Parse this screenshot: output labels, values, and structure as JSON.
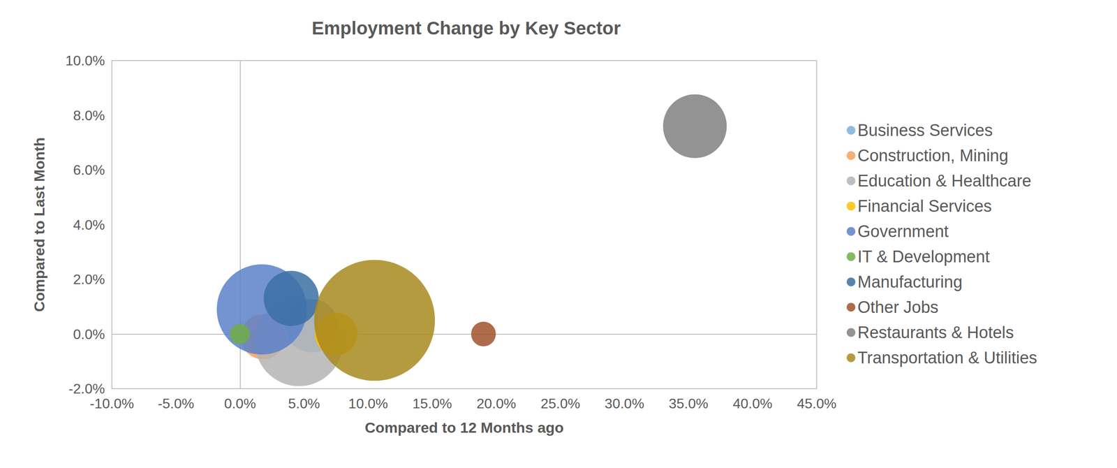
{
  "chart_data": {
    "type": "scatter",
    "title": "Employment Change by Key Sector",
    "x_label": "Compared to 12 Months ago",
    "y_label": "Compared to Last Month",
    "xlim": [
      -10,
      45
    ],
    "xticks": [
      {
        "value": -10,
        "label": "-10.0%"
      },
      {
        "value": -5,
        "label": "-5.0%"
      },
      {
        "value": 0,
        "label": "0.0%"
      },
      {
        "value": 5,
        "label": "5.0%"
      },
      {
        "value": 10,
        "label": "10.0%"
      },
      {
        "value": 15,
        "label": "15.0%"
      },
      {
        "value": 20,
        "label": "20.0%"
      },
      {
        "value": 25,
        "label": "25.0%"
      },
      {
        "value": 30,
        "label": "30.0%"
      },
      {
        "value": 35,
        "label": "35.0%"
      },
      {
        "value": 40,
        "label": "40.0%"
      },
      {
        "value": 45,
        "label": "45.0%"
      }
    ],
    "ylim": [
      -2,
      10
    ],
    "yticks": [
      {
        "value": -2,
        "label": "-2.0%"
      },
      {
        "value": 0,
        "label": "0.0%"
      },
      {
        "value": 2,
        "label": "2.0%"
      },
      {
        "value": 4,
        "label": "4.0%"
      },
      {
        "value": 6,
        "label": "6.0%"
      },
      {
        "value": 8,
        "label": "8.0%"
      },
      {
        "value": 10,
        "label": "10.0%"
      }
    ],
    "grid": false,
    "legend": "right",
    "series": [
      {
        "name": "Business Services",
        "color": "#7cafdd",
        "x": [
          5.6
        ],
        "y": [
          0.3
        ],
        "size": [
          14
        ]
      },
      {
        "name": "Construction, Mining",
        "color": "#f4a05a",
        "x": [
          1.8
        ],
        "y": [
          -0.1
        ],
        "size": [
          10
        ]
      },
      {
        "name": "Education & Healthcare",
        "color": "#b4b4b4",
        "x": [
          4.6
        ],
        "y": [
          -0.3
        ],
        "size": [
          38
        ]
      },
      {
        "name": "Financial Services",
        "color": "#ffc000",
        "x": [
          7.5
        ],
        "y": [
          0.0
        ],
        "size": [
          9
        ]
      },
      {
        "name": "Government",
        "color": "#5b80c9",
        "x": [
          1.7
        ],
        "y": [
          0.9
        ],
        "size": [
          40
        ]
      },
      {
        "name": "IT & Development",
        "color": "#70ad47",
        "x": [
          0.0
        ],
        "y": [
          0.0
        ],
        "size": [
          2
        ]
      },
      {
        "name": "Manufacturing",
        "color": "#3b6ea5",
        "x": [
          4.0
        ],
        "y": [
          1.3
        ],
        "size": [
          15
        ]
      },
      {
        "name": "Other Jobs",
        "color": "#a0522d",
        "x": [
          19.0
        ],
        "y": [
          0.0
        ],
        "size": [
          3
        ]
      },
      {
        "name": "Restaurants & Hotels",
        "color": "#808080",
        "x": [
          35.5
        ],
        "y": [
          7.6
        ],
        "size": [
          20
        ]
      },
      {
        "name": "Transportation & Utilities",
        "color": "#a88a1e",
        "x": [
          10.5
        ],
        "y": [
          0.5
        ],
        "size": [
          72
        ]
      }
    ]
  }
}
